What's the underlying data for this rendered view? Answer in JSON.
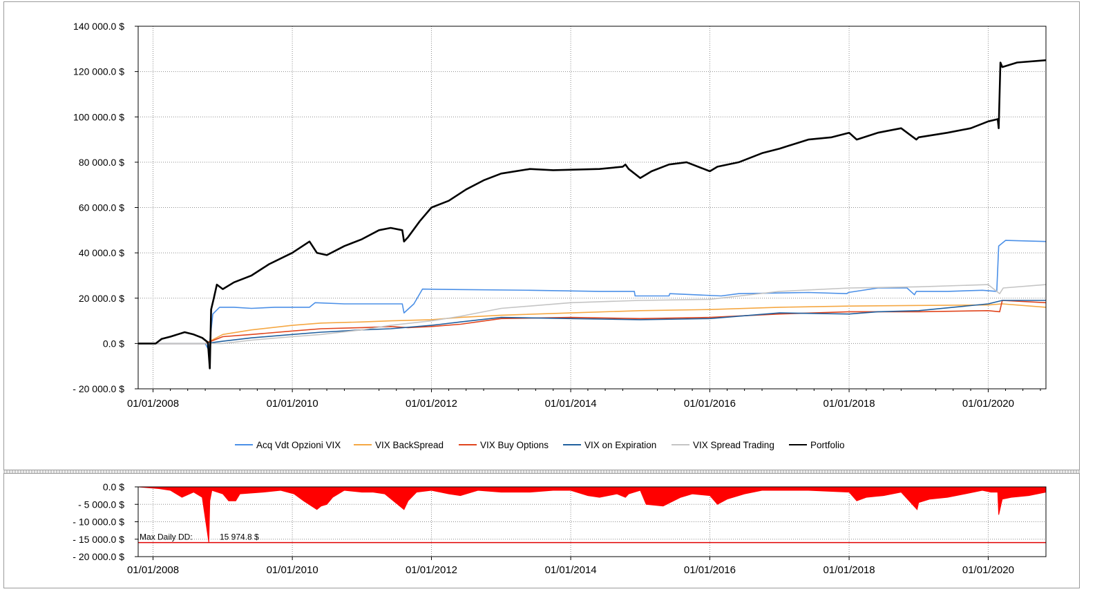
{
  "chart_data": [
    {
      "type": "line",
      "ylim": [
        -20000,
        140000
      ],
      "y_ticks": [
        140000,
        120000,
        100000,
        80000,
        60000,
        40000,
        20000,
        0,
        -20000
      ],
      "y_tick_labels": [
        "140 000.0 $",
        "120 000.0 $",
        "100 000.0 $",
        "80 000.0 $",
        "60 000.0 $",
        "40 000.0 $",
        "20 000.0 $",
        "0.0 $",
        "- 20 000.0 $"
      ],
      "xlim": [
        "2007-10-15",
        "2020-10-30"
      ],
      "x_ticks": [
        "2008-01-01",
        "2010-01-01",
        "2012-01-01",
        "2014-01-01",
        "2016-01-01",
        "2018-01-01",
        "2020-01-01"
      ],
      "x_tick_labels": [
        "01/01/2008",
        "01/01/2010",
        "01/01/2012",
        "01/01/2014",
        "01/01/2016",
        "01/01/2018",
        "01/01/2020"
      ],
      "grid": true,
      "legend": "bottom",
      "series": [
        {
          "name": "Acq Vdt Opzioni VIX",
          "color": "#4a8fe7",
          "x": [
            "2007-10-15",
            "2008-10-01",
            "2008-10-20",
            "2008-11-10",
            "2008-12-15",
            "2009-03-01",
            "2009-06-01",
            "2009-10-01",
            "2010-04-01",
            "2010-05-01",
            "2010-10-01",
            "2011-03-01",
            "2011-08-01",
            "2011-08-10",
            "2011-10-01",
            "2011-11-15",
            "2012-06-01",
            "2013-06-01",
            "2014-06-01",
            "2014-12-01",
            "2014-12-05",
            "2015-06-01",
            "2015-06-05",
            "2016-03-01",
            "2016-06-01",
            "2017-06-01",
            "2017-12-20",
            "2017-12-28",
            "2018-06-01",
            "2018-11-01",
            "2018-12-10",
            "2018-12-20",
            "2019-06-01",
            "2019-12-01",
            "2020-02-15",
            "2020-02-25",
            "2020-04-01",
            "2020-10-30"
          ],
          "y": [
            0,
            0,
            -3000,
            13000,
            16000,
            16000,
            15500,
            16000,
            16000,
            18000,
            17500,
            17500,
            17500,
            13500,
            17500,
            24000,
            23800,
            23500,
            23000,
            23000,
            21000,
            21000,
            22000,
            21000,
            22000,
            22500,
            22000,
            22500,
            24500,
            24500,
            21500,
            23000,
            23000,
            23500,
            23000,
            43000,
            45500,
            45000
          ]
        },
        {
          "name": "VIX BackSpread",
          "color": "#f5a742",
          "x": [
            "2007-10-15",
            "2008-10-01",
            "2009-01-01",
            "2009-06-01",
            "2010-01-01",
            "2010-06-01",
            "2011-01-01",
            "2011-06-01",
            "2012-01-01",
            "2012-06-01",
            "2013-01-01",
            "2014-01-01",
            "2015-01-01",
            "2016-01-01",
            "2017-01-01",
            "2018-01-01",
            "2019-01-01",
            "2020-01-01",
            "2020-03-15",
            "2020-10-30"
          ],
          "y": [
            0,
            0,
            4000,
            6000,
            8000,
            9000,
            9500,
            10000,
            10500,
            11500,
            12500,
            13500,
            14500,
            15000,
            16000,
            16500,
            16800,
            17000,
            17500,
            16000
          ]
        },
        {
          "name": "VIX Buy Options",
          "color": "#e0441c",
          "x": [
            "2007-10-15",
            "2008-10-01",
            "2009-01-01",
            "2009-06-01",
            "2010-01-01",
            "2010-06-01",
            "2011-01-01",
            "2011-06-01",
            "2011-09-01",
            "2012-01-01",
            "2012-06-01",
            "2013-01-01",
            "2014-01-01",
            "2015-01-01",
            "2016-01-01",
            "2017-01-01",
            "2018-01-01",
            "2019-01-01",
            "2020-01-01",
            "2020-03-01",
            "2020-03-15",
            "2020-10-30"
          ],
          "y": [
            0,
            0,
            3000,
            4000,
            5500,
            6500,
            7000,
            7500,
            7000,
            7500,
            8500,
            11000,
            11500,
            11000,
            11500,
            13000,
            14000,
            14000,
            14500,
            14000,
            19000,
            18000
          ]
        },
        {
          "name": "VIX on Expiration",
          "color": "#1f5f9e",
          "x": [
            "2007-10-15",
            "2008-10-01",
            "2009-01-01",
            "2009-06-01",
            "2010-01-01",
            "2010-06-01",
            "2011-01-01",
            "2011-06-01",
            "2012-01-01",
            "2012-06-01",
            "2013-01-01",
            "2014-01-01",
            "2015-01-01",
            "2016-01-01",
            "2017-01-01",
            "2018-01-01",
            "2018-06-01",
            "2019-01-01",
            "2020-01-01",
            "2020-03-15",
            "2020-10-30"
          ],
          "y": [
            0,
            0,
            1000,
            2500,
            4000,
            5000,
            6000,
            6500,
            8000,
            9500,
            11500,
            11000,
            10500,
            11000,
            13500,
            13000,
            14000,
            14500,
            17500,
            19000,
            19000
          ]
        },
        {
          "name": "VIX Spread Trading",
          "color": "#c4c4c4",
          "x": [
            "2007-10-15",
            "2008-10-01",
            "2009-01-01",
            "2009-06-01",
            "2010-01-01",
            "2010-06-01",
            "2011-01-01",
            "2011-06-01",
            "2012-01-01",
            "2012-06-01",
            "2013-01-01",
            "2014-01-01",
            "2015-01-01",
            "2016-01-01",
            "2017-01-01",
            "2018-01-01",
            "2019-01-01",
            "2020-01-01",
            "2020-03-01",
            "2020-03-20",
            "2020-10-30"
          ],
          "y": [
            0,
            0,
            0,
            1500,
            3000,
            4000,
            6000,
            8000,
            10000,
            12000,
            15500,
            18000,
            19000,
            19500,
            23000,
            24500,
            25000,
            26000,
            22000,
            24500,
            26000
          ]
        },
        {
          "name": "Portfolio",
          "color": "#000000",
          "x": [
            "2007-10-15",
            "2008-01-15",
            "2008-02-15",
            "2008-04-01",
            "2008-06-15",
            "2008-08-01",
            "2008-09-15",
            "2008-10-15",
            "2008-10-25",
            "2008-11-01",
            "2008-11-15",
            "2008-12-01",
            "2009-01-01",
            "2009-03-01",
            "2009-06-01",
            "2009-09-01",
            "2010-01-01",
            "2010-04-01",
            "2010-05-10",
            "2010-07-01",
            "2010-10-01",
            "2011-01-01",
            "2011-04-01",
            "2011-06-01",
            "2011-08-01",
            "2011-08-10",
            "2011-09-01",
            "2011-11-01",
            "2012-01-01",
            "2012-04-01",
            "2012-07-01",
            "2012-10-01",
            "2013-01-01",
            "2013-06-01",
            "2013-10-01",
            "2014-06-01",
            "2014-10-01",
            "2014-10-15",
            "2014-11-01",
            "2015-01-01",
            "2015-03-01",
            "2015-06-01",
            "2015-09-01",
            "2016-01-01",
            "2016-02-10",
            "2016-06-01",
            "2016-10-01",
            "2017-01-01",
            "2017-06-01",
            "2017-10-01",
            "2018-01-01",
            "2018-02-10",
            "2018-06-01",
            "2018-10-01",
            "2018-12-20",
            "2019-01-01",
            "2019-06-01",
            "2019-10-01",
            "2020-01-01",
            "2020-02-20",
            "2020-02-25",
            "2020-03-05",
            "2020-03-15",
            "2020-06-01",
            "2020-10-30"
          ],
          "y": [
            0,
            0,
            2000,
            3000,
            5000,
            4000,
            2500,
            500,
            -11000,
            15000,
            20000,
            26000,
            24000,
            27000,
            30000,
            35000,
            40000,
            45000,
            40000,
            39000,
            43000,
            46000,
            50000,
            51000,
            50000,
            45000,
            47000,
            54000,
            60000,
            63000,
            68000,
            72000,
            75000,
            77000,
            76500,
            77000,
            78000,
            79000,
            77000,
            73000,
            76000,
            79000,
            80000,
            76000,
            78000,
            80000,
            84000,
            86000,
            90000,
            91000,
            93000,
            90000,
            93000,
            95000,
            90000,
            91000,
            93000,
            95000,
            98000,
            99000,
            95000,
            124000,
            122000,
            124000,
            125000
          ]
        }
      ]
    },
    {
      "type": "area",
      "ylim": [
        -20000,
        0
      ],
      "y_ticks": [
        0,
        -5000,
        -10000,
        -15000,
        -20000
      ],
      "y_tick_labels": [
        "0.0 $",
        "- 5 000.0 $",
        "- 10 000.0 $",
        "- 15 000.0 $",
        "- 20 000.0 $"
      ],
      "x_tick_labels": [
        "01/01/2008",
        "01/01/2010",
        "01/01/2012",
        "01/01/2014",
        "01/01/2016",
        "01/01/2018",
        "01/01/2020"
      ],
      "grid": true,
      "series": [
        {
          "color": "#ff0000",
          "x": [
            "2007-10-15",
            "2008-02-01",
            "2008-04-01",
            "2008-06-01",
            "2008-08-01",
            "2008-09-15",
            "2008-10-20",
            "2008-10-25",
            "2008-11-05",
            "2009-01-01",
            "2009-02-01",
            "2009-03-10",
            "2009-04-01",
            "2009-08-01",
            "2009-11-01",
            "2010-01-10",
            "2010-03-01",
            "2010-05-10",
            "2010-06-01",
            "2010-07-01",
            "2010-08-01",
            "2010-10-01",
            "2011-01-01",
            "2011-03-01",
            "2011-05-01",
            "2011-08-10",
            "2011-09-01",
            "2011-10-15",
            "2012-01-01",
            "2012-04-01",
            "2012-06-01",
            "2012-09-01",
            "2013-01-01",
            "2013-06-01",
            "2013-10-01",
            "2014-01-01",
            "2014-04-01",
            "2014-06-01",
            "2014-09-01",
            "2014-10-15",
            "2014-11-01",
            "2015-01-01",
            "2015-02-01",
            "2015-05-01",
            "2015-08-01",
            "2015-10-01",
            "2016-01-01",
            "2016-02-10",
            "2016-04-01",
            "2016-07-01",
            "2016-10-01",
            "2017-01-01",
            "2017-06-01",
            "2018-01-01",
            "2018-02-10",
            "2018-04-01",
            "2018-07-01",
            "2018-10-01",
            "2018-12-24",
            "2019-01-01",
            "2019-03-01",
            "2019-06-01",
            "2019-09-01",
            "2019-12-01",
            "2020-01-15",
            "2020-02-20",
            "2020-02-25",
            "2020-03-15",
            "2020-05-01",
            "2020-08-01",
            "2020-10-30"
          ],
          "y": [
            0,
            -500,
            -1000,
            -3000,
            -1500,
            -3000,
            -15974.8,
            -4000,
            -1000,
            -2000,
            -4000,
            -4000,
            -2000,
            -1500,
            -1000,
            -2000,
            -4000,
            -6500,
            -5500,
            -5000,
            -3000,
            -1000,
            -1500,
            -1500,
            -2000,
            -6500,
            -4000,
            -1500,
            -1000,
            -2000,
            -2500,
            -1000,
            -1500,
            -1500,
            -1000,
            -1000,
            -2500,
            -3000,
            -2000,
            -3000,
            -2000,
            -1000,
            -5000,
            -5500,
            -3000,
            -2000,
            -2500,
            -5000,
            -3500,
            -2000,
            -1000,
            -1000,
            -1000,
            -1500,
            -4000,
            -3000,
            -2500,
            -1500,
            -6500,
            -4500,
            -3500,
            -3000,
            -2000,
            -1000,
            -1500,
            -1500,
            -8000,
            -3500,
            -3000,
            -2500,
            -1500
          ]
        }
      ],
      "max_dd_value": -15974.8,
      "max_dd_label": "Max Daily DD:",
      "max_dd_text": "15 974.8 $",
      "max_dd_line_color": "#e00000"
    }
  ]
}
